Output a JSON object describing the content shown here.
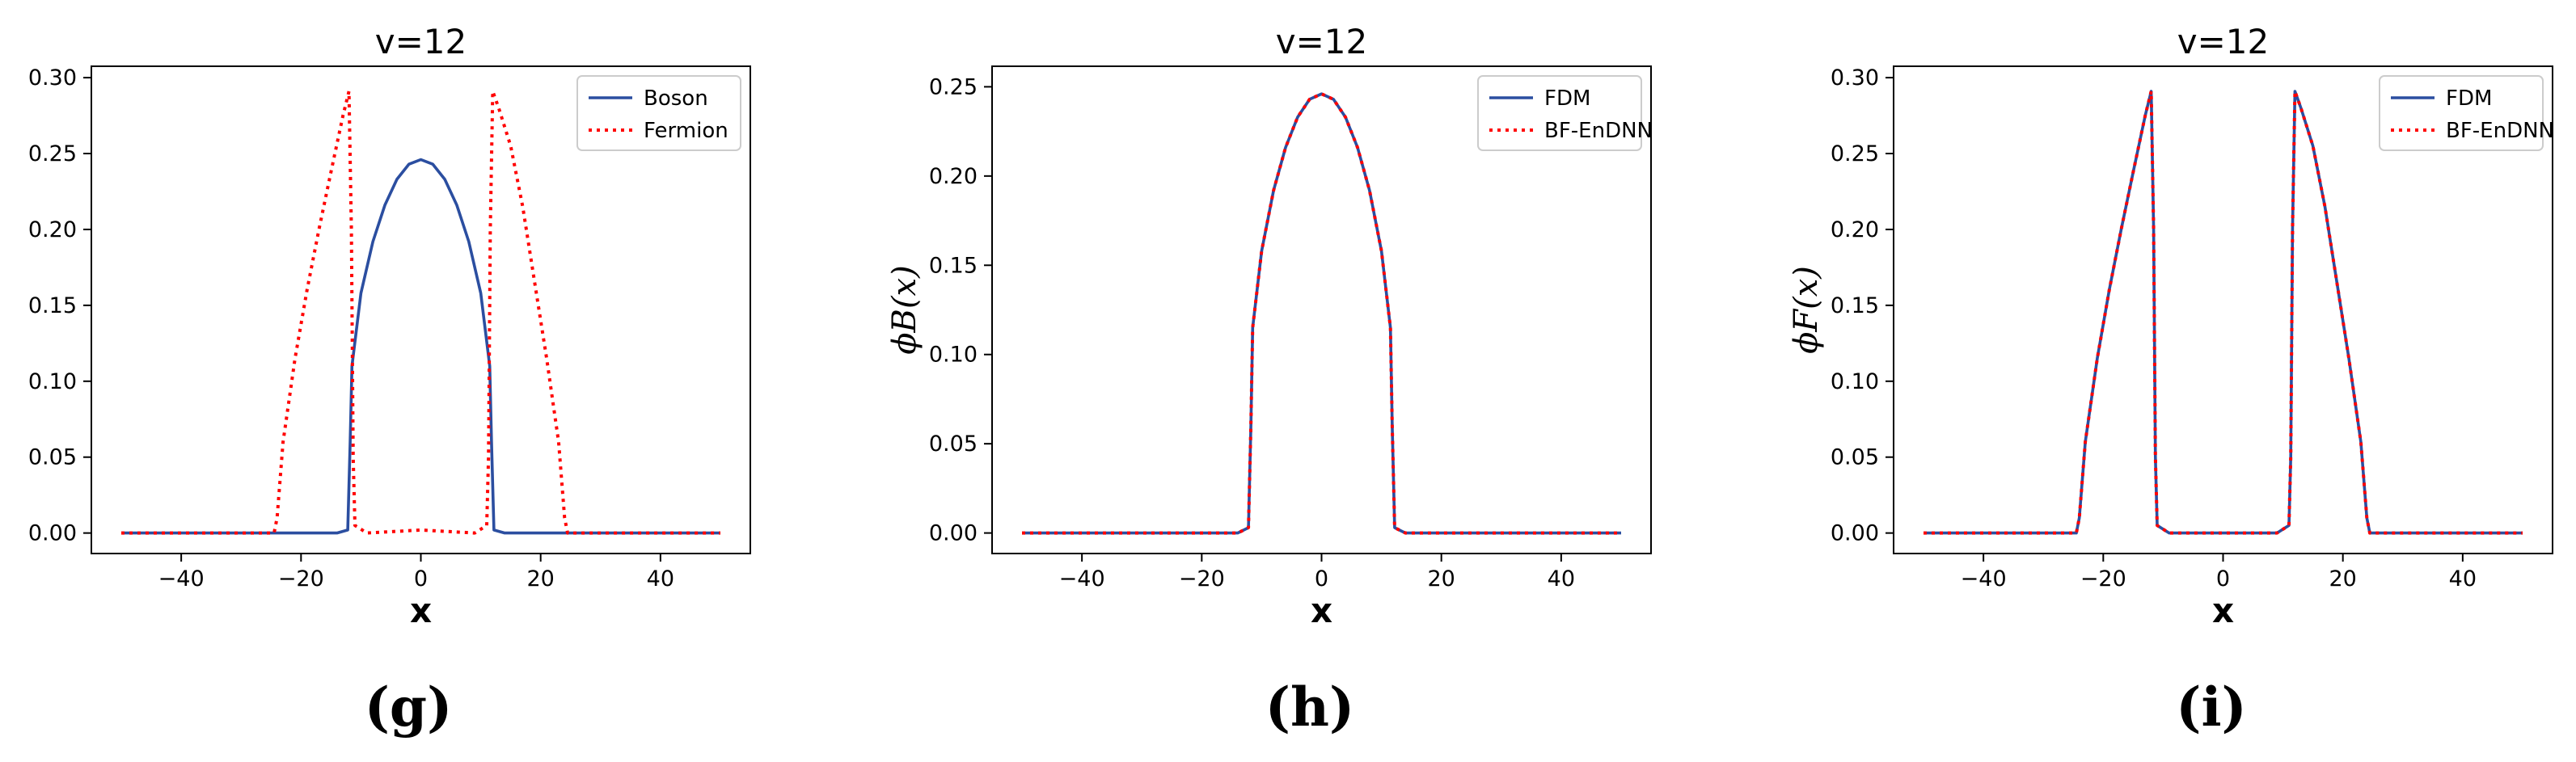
{
  "chart_data": [
    {
      "type": "line",
      "title": "v=12",
      "xlabel": "x",
      "ylabel": "",
      "panel_label": "(g)",
      "xlim": [
        -55,
        55
      ],
      "ylim": [
        -0.0135,
        0.3075
      ],
      "xticks": [
        -40,
        -20,
        0,
        20,
        40
      ],
      "xtick_labels": [
        "−40",
        "−20",
        "0",
        "20",
        "40"
      ],
      "yticks": [
        0.0,
        0.05,
        0.1,
        0.15,
        0.2,
        0.25,
        0.3
      ],
      "ytick_labels": [
        "0.00",
        "0.05",
        "0.10",
        "0.15",
        "0.20",
        "0.25",
        "0.30"
      ],
      "grid": false,
      "legend_position": "top-right",
      "series": [
        {
          "name": "Boson",
          "color": "#2b4ea0",
          "style": "solid",
          "points": [
            [
              -50,
              0
            ],
            [
              -14,
              0
            ],
            [
              -12.2,
              0.002
            ],
            [
              -11.8,
              0.06
            ],
            [
              -11.5,
              0.11
            ],
            [
              -10,
              0.158
            ],
            [
              -8,
              0.192
            ],
            [
              -6,
              0.216
            ],
            [
              -4,
              0.233
            ],
            [
              -2,
              0.243
            ],
            [
              0,
              0.246
            ],
            [
              2,
              0.243
            ],
            [
              4,
              0.233
            ],
            [
              6,
              0.216
            ],
            [
              8,
              0.192
            ],
            [
              10,
              0.158
            ],
            [
              11.5,
              0.11
            ],
            [
              11.8,
              0.06
            ],
            [
              12.2,
              0.002
            ],
            [
              14,
              0
            ],
            [
              50,
              0
            ]
          ]
        },
        {
          "name": "Fermion",
          "color": "#ff0000",
          "style": "dotted",
          "points": [
            [
              -50,
              0
            ],
            [
              -24.5,
              0
            ],
            [
              -24,
              0.01
            ],
            [
              -23,
              0.06
            ],
            [
              -21,
              0.115
            ],
            [
              -19,
              0.16
            ],
            [
              -17,
              0.2
            ],
            [
              -15,
              0.238
            ],
            [
              -13,
              0.275
            ],
            [
              -12,
              0.291
            ],
            [
              -11.6,
              0.2
            ],
            [
              -11.3,
              0.05
            ],
            [
              -11,
              0.005
            ],
            [
              -9,
              0
            ],
            [
              0,
              0.002
            ],
            [
              9,
              0
            ],
            [
              11,
              0.005
            ],
            [
              11.3,
              0.05
            ],
            [
              11.6,
              0.2
            ],
            [
              12,
              0.291
            ],
            [
              13,
              0.28
            ],
            [
              15,
              0.255
            ],
            [
              17,
              0.215
            ],
            [
              19,
              0.165
            ],
            [
              21,
              0.115
            ],
            [
              23,
              0.06
            ],
            [
              24,
              0.01
            ],
            [
              24.5,
              0
            ],
            [
              50,
              0
            ]
          ]
        }
      ]
    },
    {
      "type": "line",
      "title": "v=12",
      "xlabel": "x",
      "ylabel": "ϕB(x)",
      "panel_label": "(h)",
      "xlim": [
        -55,
        55
      ],
      "ylim": [
        -0.0115,
        0.2615
      ],
      "xticks": [
        -40,
        -20,
        0,
        20,
        40
      ],
      "xtick_labels": [
        "−40",
        "−20",
        "0",
        "20",
        "40"
      ],
      "yticks": [
        0.0,
        0.05,
        0.1,
        0.15,
        0.2,
        0.25
      ],
      "ytick_labels": [
        "0.00",
        "0.05",
        "0.10",
        "0.15",
        "0.20",
        "0.25"
      ],
      "grid": false,
      "legend_position": "top-right",
      "series": [
        {
          "name": "FDM",
          "color": "#2b4ea0",
          "style": "solid",
          "points": [
            [
              -50,
              0
            ],
            [
              -14,
              0
            ],
            [
              -12.2,
              0.003
            ],
            [
              -11.8,
              0.06
            ],
            [
              -11.5,
              0.115
            ],
            [
              -10,
              0.158
            ],
            [
              -8,
              0.192
            ],
            [
              -6,
              0.216
            ],
            [
              -4,
              0.233
            ],
            [
              -2,
              0.243
            ],
            [
              0,
              0.246
            ],
            [
              2,
              0.243
            ],
            [
              4,
              0.233
            ],
            [
              6,
              0.216
            ],
            [
              8,
              0.192
            ],
            [
              10,
              0.158
            ],
            [
              11.5,
              0.115
            ],
            [
              11.8,
              0.06
            ],
            [
              12.2,
              0.003
            ],
            [
              14,
              0
            ],
            [
              50,
              0
            ]
          ]
        },
        {
          "name": "BF-EnDNN",
          "color": "#ff0000",
          "style": "dotted",
          "points": [
            [
              -50,
              0
            ],
            [
              -14,
              0
            ],
            [
              -12.2,
              0.003
            ],
            [
              -11.8,
              0.06
            ],
            [
              -11.5,
              0.115
            ],
            [
              -10,
              0.158
            ],
            [
              -8,
              0.192
            ],
            [
              -6,
              0.216
            ],
            [
              -4,
              0.233
            ],
            [
              -2,
              0.243
            ],
            [
              0,
              0.246
            ],
            [
              2,
              0.243
            ],
            [
              4,
              0.233
            ],
            [
              6,
              0.216
            ],
            [
              8,
              0.192
            ],
            [
              10,
              0.158
            ],
            [
              11.5,
              0.115
            ],
            [
              11.8,
              0.06
            ],
            [
              12.2,
              0.003
            ],
            [
              14,
              0
            ],
            [
              50,
              0
            ]
          ]
        }
      ]
    },
    {
      "type": "line",
      "title": "v=12",
      "xlabel": "x",
      "ylabel": "ϕF(x)",
      "panel_label": "(i)",
      "xlim": [
        -55,
        55
      ],
      "ylim": [
        -0.0135,
        0.3075
      ],
      "xticks": [
        -40,
        -20,
        0,
        20,
        40
      ],
      "xtick_labels": [
        "−40",
        "−20",
        "0",
        "20",
        "40"
      ],
      "yticks": [
        0.0,
        0.05,
        0.1,
        0.15,
        0.2,
        0.25,
        0.3
      ],
      "ytick_labels": [
        "0.00",
        "0.05",
        "0.10",
        "0.15",
        "0.20",
        "0.25",
        "0.30"
      ],
      "grid": false,
      "legend_position": "top-right",
      "series": [
        {
          "name": "FDM",
          "color": "#2b4ea0",
          "style": "solid",
          "points": [
            [
              -50,
              0
            ],
            [
              -24.5,
              0
            ],
            [
              -24,
              0.01
            ],
            [
              -23,
              0.06
            ],
            [
              -21,
              0.115
            ],
            [
              -19,
              0.16
            ],
            [
              -17,
              0.2
            ],
            [
              -15,
              0.238
            ],
            [
              -13,
              0.275
            ],
            [
              -12,
              0.291
            ],
            [
              -11.6,
              0.2
            ],
            [
              -11.3,
              0.05
            ],
            [
              -11,
              0.005
            ],
            [
              -9,
              0
            ],
            [
              9,
              0
            ],
            [
              11,
              0.005
            ],
            [
              11.3,
              0.05
            ],
            [
              11.6,
              0.2
            ],
            [
              12,
              0.291
            ],
            [
              13,
              0.28
            ],
            [
              15,
              0.255
            ],
            [
              17,
              0.215
            ],
            [
              19,
              0.165
            ],
            [
              21,
              0.115
            ],
            [
              23,
              0.06
            ],
            [
              24,
              0.01
            ],
            [
              24.5,
              0
            ],
            [
              50,
              0
            ]
          ]
        },
        {
          "name": "BF-EnDNN",
          "color": "#ff0000",
          "style": "dotted",
          "points": [
            [
              -50,
              0
            ],
            [
              -24.5,
              0
            ],
            [
              -24,
              0.01
            ],
            [
              -23,
              0.06
            ],
            [
              -21,
              0.115
            ],
            [
              -19,
              0.16
            ],
            [
              -17,
              0.2
            ],
            [
              -15,
              0.238
            ],
            [
              -13,
              0.275
            ],
            [
              -12,
              0.291
            ],
            [
              -11.6,
              0.2
            ],
            [
              -11.3,
              0.05
            ],
            [
              -11,
              0.005
            ],
            [
              -9,
              0
            ],
            [
              9,
              0
            ],
            [
              11,
              0.005
            ],
            [
              11.3,
              0.05
            ],
            [
              11.6,
              0.2
            ],
            [
              12,
              0.291
            ],
            [
              13,
              0.28
            ],
            [
              15,
              0.255
            ],
            [
              17,
              0.215
            ],
            [
              19,
              0.165
            ],
            [
              21,
              0.115
            ],
            [
              23,
              0.06
            ],
            [
              24,
              0.01
            ],
            [
              24.5,
              0
            ],
            [
              50,
              0
            ]
          ]
        }
      ]
    }
  ]
}
